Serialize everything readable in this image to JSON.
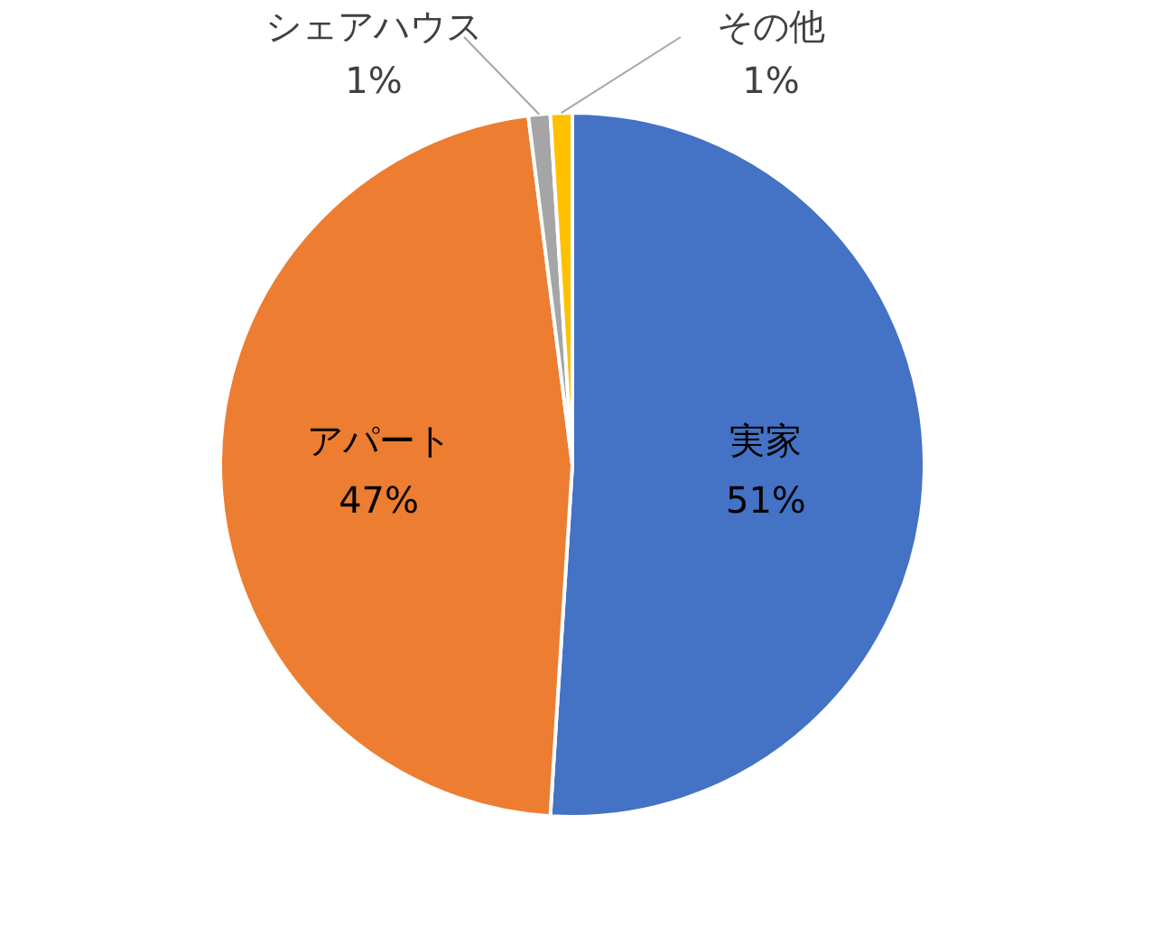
{
  "chart_data": {
    "type": "pie",
    "categories": [
      "実家",
      "アパート",
      "シェアハウス",
      "その他"
    ],
    "values": [
      51,
      47,
      1,
      1
    ],
    "colors": [
      "#4472c4",
      "#ed7d31",
      "#a5a5a5",
      "#ffc000"
    ],
    "value_labels": [
      "51%",
      "47%",
      "1%",
      "1%"
    ],
    "legend": false
  }
}
